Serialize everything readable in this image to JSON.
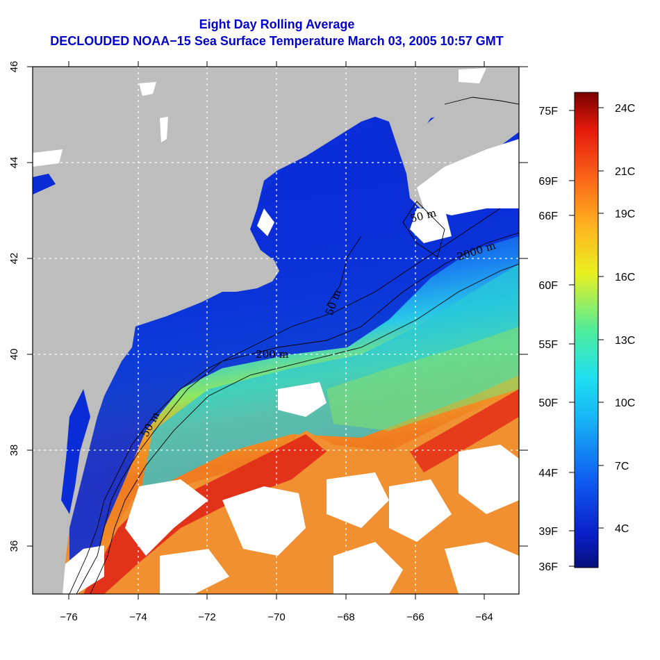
{
  "title_line1": "Eight Day Rolling Average",
  "title_line2": "DECLOUDED NOAA−15 Sea Surface Temperature March 03, 2005 10:57 GMT",
  "map": {
    "lon_ticks": [
      "−76",
      "−74",
      "−72",
      "−70",
      "−68",
      "−66",
      "−64"
    ],
    "lat_ticks": [
      "36",
      "38",
      "40",
      "42",
      "44",
      "46"
    ],
    "contour_labels": [
      "50 m",
      "200 m",
      "2000 m",
      "50 m",
      "50 m"
    ],
    "colors": {
      "land": "#bdbdbd",
      "cloud": "#ffffff",
      "cold": "#0a2fd6",
      "warm": "#f0902a"
    }
  },
  "colorbar": {
    "celsius": [
      "24C",
      "21C",
      "19C",
      "16C",
      "13C",
      "10C",
      "7C",
      "4C"
    ],
    "fahrenheit": [
      "75F",
      "69F",
      "66F",
      "60F",
      "55F",
      "50F",
      "44F",
      "39F",
      "36F"
    ]
  }
}
